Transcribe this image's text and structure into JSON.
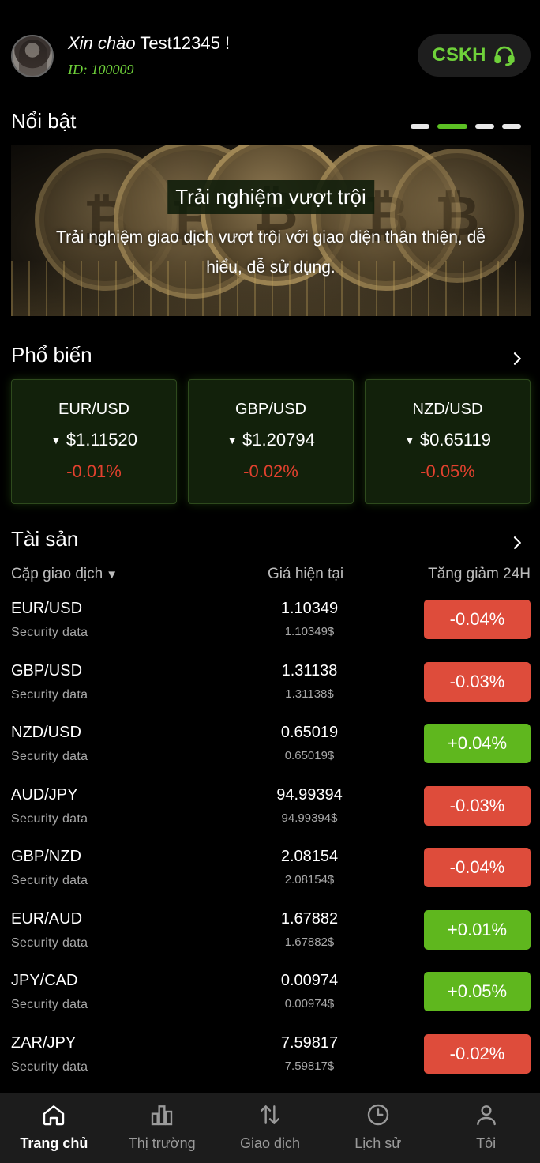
{
  "header": {
    "greeting_prefix": "Xin chào",
    "username": "Test12345 !",
    "user_id": "ID: 100009",
    "support_label": "CSKH"
  },
  "featured": {
    "title": "Nổi bật",
    "banner_title": "Trải nghiệm vượt trội",
    "banner_desc": "Trải nghiệm giao dịch vượt trội với giao diện thân thiện, dễ hiểu, dễ sử dụng.",
    "carousel_count": 4,
    "carousel_active": 2
  },
  "popular": {
    "title": "Phổ biến",
    "cards": [
      {
        "pair": "EUR/USD",
        "price": "$1.11520",
        "change": "-0.01%"
      },
      {
        "pair": "GBP/USD",
        "price": "$1.20794",
        "change": "-0.02%"
      },
      {
        "pair": "NZD/USD",
        "price": "$0.65119",
        "change": "-0.05%"
      }
    ]
  },
  "assets": {
    "title": "Tài sản",
    "col_pair": "Cặp giao dịch",
    "col_price": "Giá hiện tại",
    "col_change": "Tăng giảm 24H",
    "rows": [
      {
        "pair": "EUR/USD",
        "sub": "Security data",
        "price": "1.10349",
        "price_usd": "1.10349$",
        "change": "-0.04%",
        "dir": "down"
      },
      {
        "pair": "GBP/USD",
        "sub": "Security data",
        "price": "1.31138",
        "price_usd": "1.31138$",
        "change": "-0.03%",
        "dir": "down"
      },
      {
        "pair": "NZD/USD",
        "sub": "Security data",
        "price": "0.65019",
        "price_usd": "0.65019$",
        "change": "+0.04%",
        "dir": "up"
      },
      {
        "pair": "AUD/JPY",
        "sub": "Security data",
        "price": "94.99394",
        "price_usd": "94.99394$",
        "change": "-0.03%",
        "dir": "down"
      },
      {
        "pair": "GBP/NZD",
        "sub": "Security data",
        "price": "2.08154",
        "price_usd": "2.08154$",
        "change": "-0.04%",
        "dir": "down"
      },
      {
        "pair": "EUR/AUD",
        "sub": "Security data",
        "price": "1.67882",
        "price_usd": "1.67882$",
        "change": "+0.01%",
        "dir": "up"
      },
      {
        "pair": "JPY/CAD",
        "sub": "Security data",
        "price": "0.00974",
        "price_usd": "0.00974$",
        "change": "+0.05%",
        "dir": "up"
      },
      {
        "pair": "ZAR/JPY",
        "sub": "Security data",
        "price": "7.59817",
        "price_usd": "7.59817$",
        "change": "-0.02%",
        "dir": "down"
      }
    ]
  },
  "nav": [
    {
      "label": "Trang chủ",
      "icon": "home-icon",
      "active": true
    },
    {
      "label": "Thị trường",
      "icon": "bar-chart-icon",
      "active": false
    },
    {
      "label": "Giao dịch",
      "icon": "swap-arrows-icon",
      "active": false
    },
    {
      "label": "Lịch sử",
      "icon": "clock-icon",
      "active": false
    },
    {
      "label": "Tôi",
      "icon": "user-icon",
      "active": false
    }
  ],
  "colors": {
    "accent_green": "#6fd13a",
    "up": "#5fb71e",
    "down": "#de4c3b",
    "background": "#000000"
  }
}
